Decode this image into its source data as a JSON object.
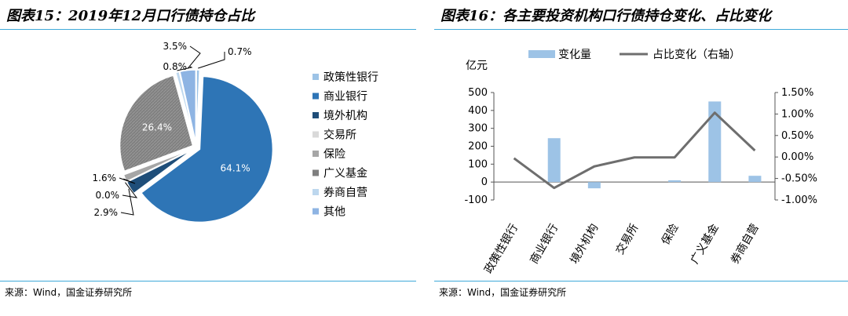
{
  "left": {
    "title": "图表15：2019年12月口行债持仓占比",
    "source": "来源：Wind，国金证券研究所",
    "chart_data": {
      "type": "pie",
      "title": "",
      "slices": [
        {
          "name": "政策性银行",
          "value": 0.7,
          "label": "0.7%",
          "color": "#9dc3e6"
        },
        {
          "name": "商业银行",
          "value": 64.1,
          "label": "64.1%",
          "color": "#2e75b6"
        },
        {
          "name": "境外机构",
          "value": 2.9,
          "label": "2.9%",
          "color": "#1f4e79"
        },
        {
          "name": "交易所",
          "value": 0.0,
          "label": "0.0%",
          "color": "#d9d9d9"
        },
        {
          "name": "保险",
          "value": 1.6,
          "label": "1.6%",
          "color": "#a6a6a6"
        },
        {
          "name": "广义基金",
          "value": 26.4,
          "label": "26.4%",
          "color": "#7f7f7f"
        },
        {
          "name": "券商自营",
          "value": 0.8,
          "label": "0.8%",
          "color": "#bdd7ee"
        },
        {
          "name": "其他",
          "value": 3.5,
          "label": "3.5%",
          "color": "#8eb4e3"
        }
      ],
      "legend_position": "right"
    }
  },
  "right": {
    "title": "图表16：各主要投资机构口行债持仓变化、占比变化",
    "source": "来源：Wind，国金证券研究所",
    "chart_data": {
      "type": "bar",
      "title": "",
      "categories": [
        "政策性银行",
        "商业银行",
        "境外机构",
        "交易所",
        "保险",
        "广义基金",
        "券商自营"
      ],
      "series": [
        {
          "name": "变化量",
          "type": "bar",
          "axis": "left",
          "values": [
            0,
            245,
            -35,
            0,
            10,
            450,
            35
          ],
          "color": "#9dc3e6"
        },
        {
          "name": "占比变化（右轴）",
          "type": "line",
          "axis": "right",
          "values": [
            -0.03,
            -0.72,
            -0.22,
            -0.01,
            -0.01,
            1.03,
            0.15
          ],
          "color": "#6e6e6e"
        }
      ],
      "ylabel": "亿元",
      "ylim": [
        -100,
        500
      ],
      "y_ticks": [
        "500",
        "400",
        "300",
        "200",
        "100",
        "0",
        "-100"
      ],
      "y2lim": [
        -1.0,
        1.5
      ],
      "y2_ticks": [
        "1.50%",
        "1.00%",
        "0.50%",
        "0.00%",
        "-0.50%",
        "-1.00%"
      ],
      "legend_position": "top"
    }
  }
}
